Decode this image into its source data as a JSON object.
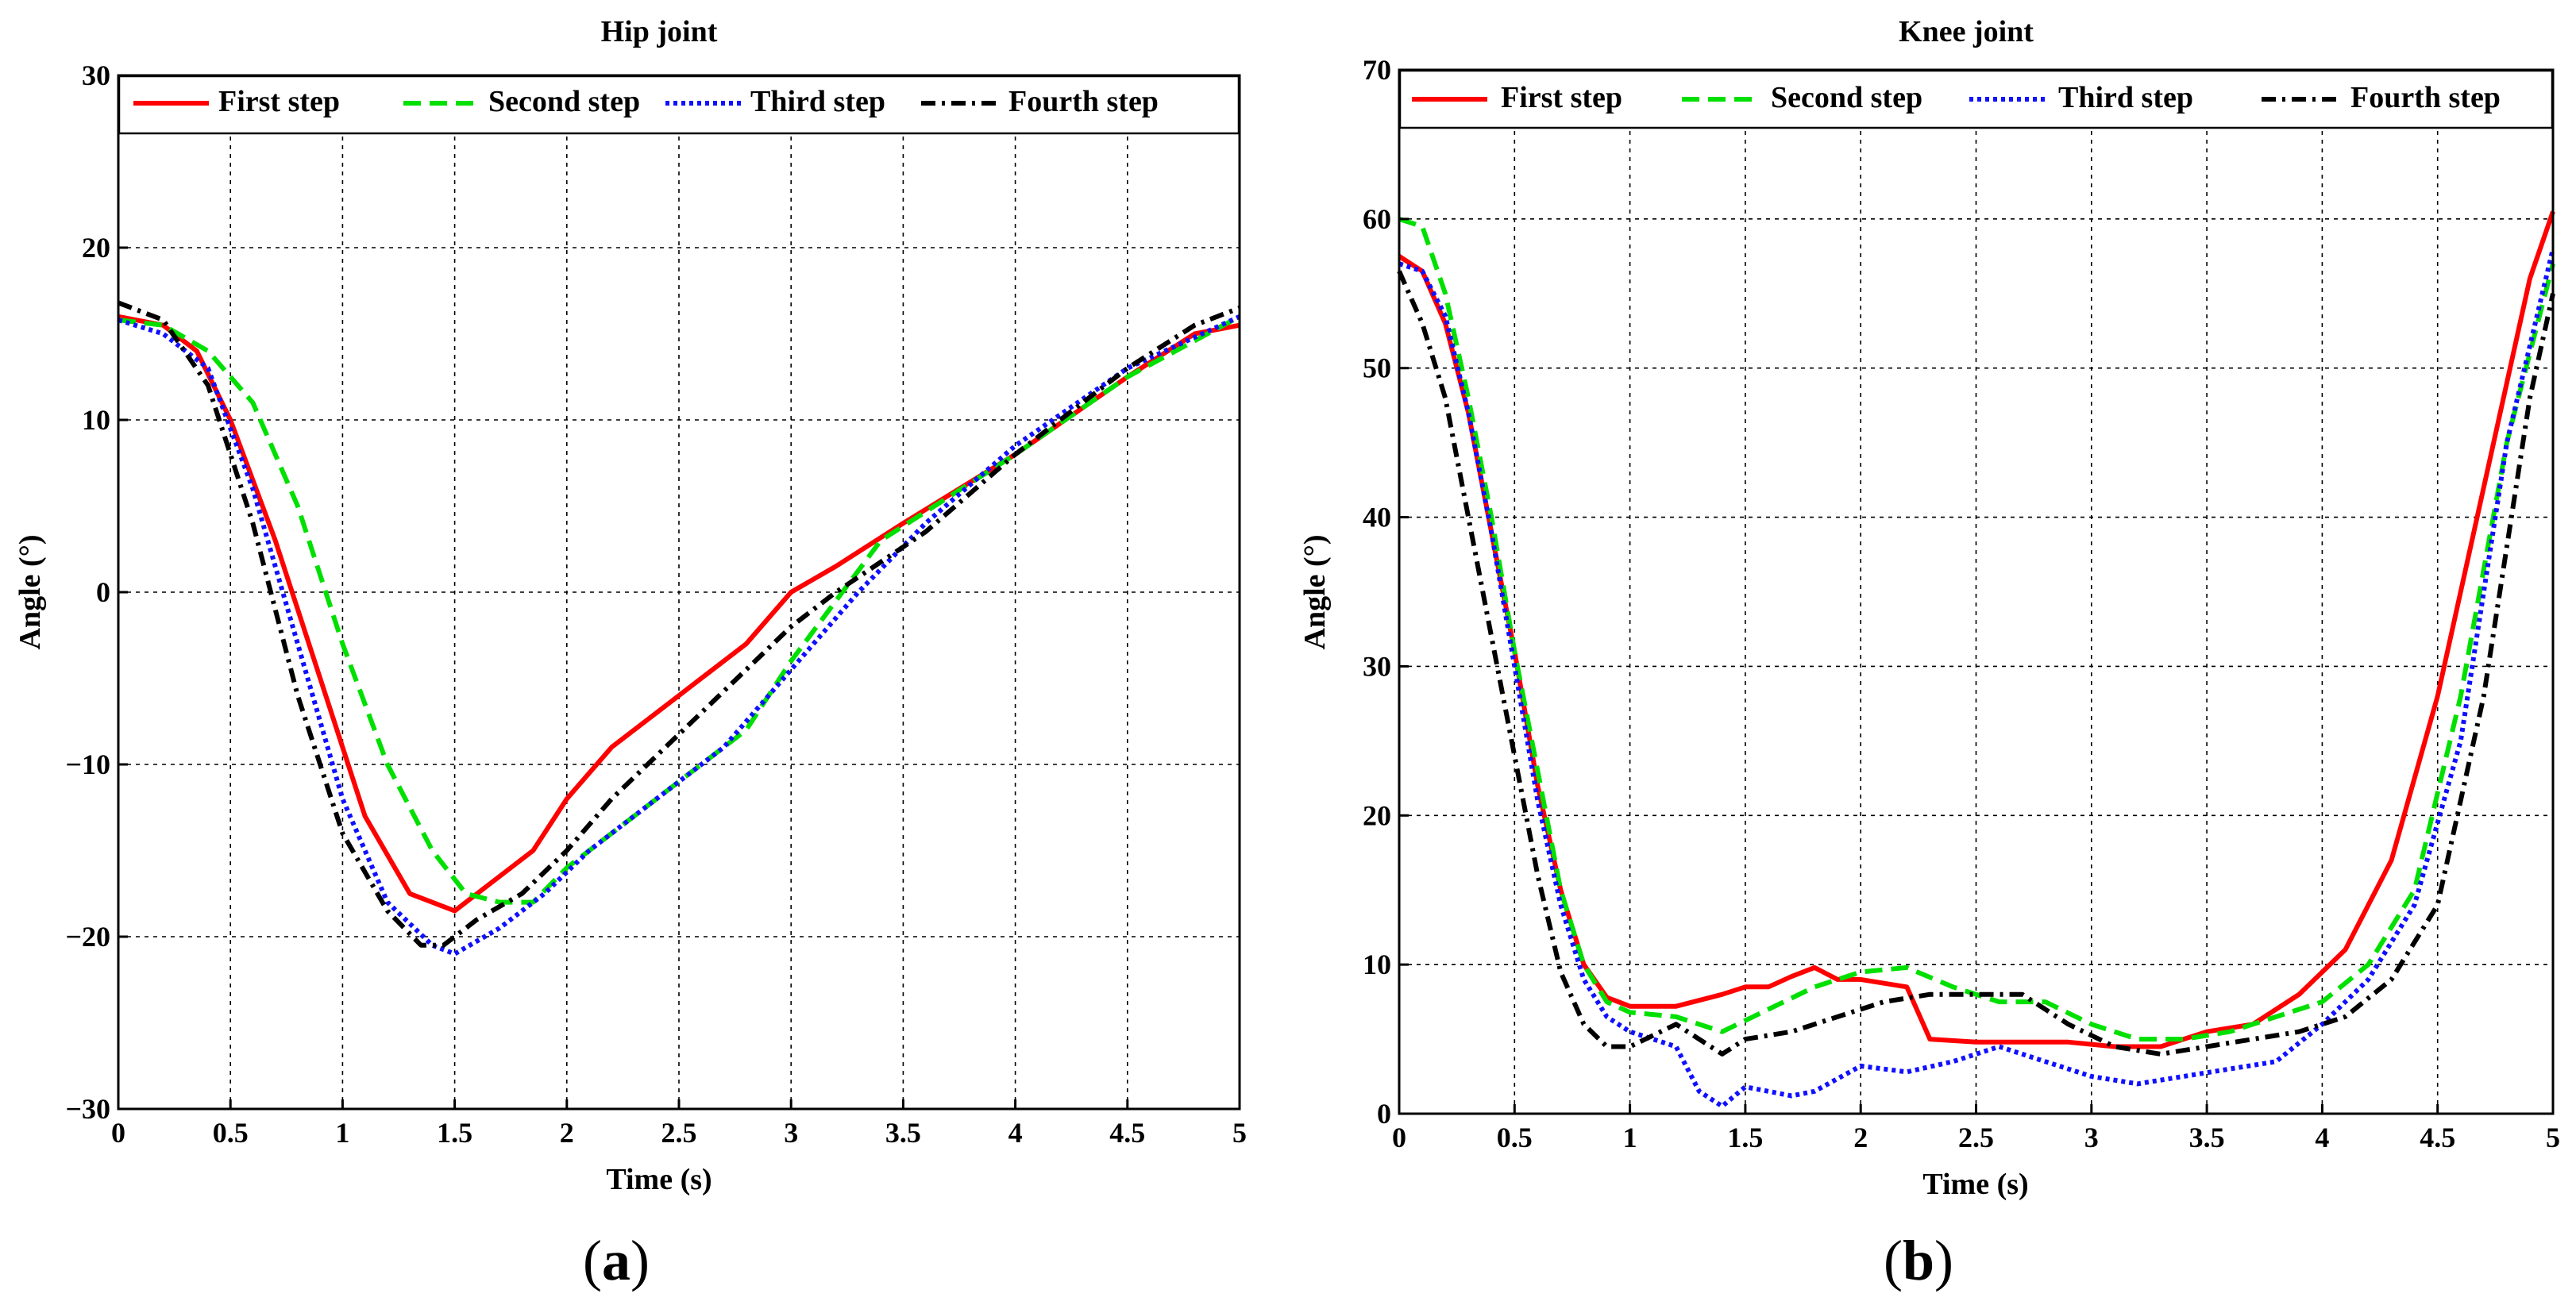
{
  "chart_data": [
    {
      "type": "line",
      "title": "Hip joint",
      "xlabel": "Time (s)",
      "ylabel": "Angle (°)",
      "xlim": [
        0,
        5
      ],
      "ylim": [
        -30,
        30
      ],
      "xticks": [
        "0",
        "0.5",
        "1",
        "1.5",
        "2",
        "2.5",
        "3",
        "3.5",
        "4",
        "4.5",
        "5"
      ],
      "yticks": [
        "30",
        "20",
        "10",
        "0",
        "−10",
        "−20",
        "−30"
      ],
      "grid": true,
      "legend": "top",
      "caption": {
        "open": "(",
        "letter": "a",
        "close": ")"
      },
      "series": [
        {
          "name": "First step",
          "color": "#ff0000",
          "style": "solid",
          "points": [
            [
              0,
              16
            ],
            [
              0.2,
              15.5
            ],
            [
              0.35,
              14
            ],
            [
              0.5,
              10
            ],
            [
              0.7,
              3
            ],
            [
              0.9,
              -5
            ],
            [
              1.1,
              -13
            ],
            [
              1.3,
              -17.5
            ],
            [
              1.5,
              -18.5
            ],
            [
              1.65,
              -17
            ],
            [
              1.85,
              -15
            ],
            [
              2.0,
              -12
            ],
            [
              2.2,
              -9
            ],
            [
              2.4,
              -7
            ],
            [
              2.6,
              -5
            ],
            [
              2.8,
              -3
            ],
            [
              3.0,
              0
            ],
            [
              3.2,
              1.5
            ],
            [
              3.5,
              4
            ],
            [
              4.0,
              8
            ],
            [
              4.5,
              12.5
            ],
            [
              4.8,
              15
            ],
            [
              5.0,
              15.5
            ]
          ]
        },
        {
          "name": "Second step",
          "color": "#00e000",
          "style": "dashed",
          "points": [
            [
              0,
              15.8
            ],
            [
              0.2,
              15.5
            ],
            [
              0.4,
              14
            ],
            [
              0.6,
              11
            ],
            [
              0.8,
              5
            ],
            [
              1.0,
              -3
            ],
            [
              1.2,
              -10
            ],
            [
              1.4,
              -15
            ],
            [
              1.55,
              -17.5
            ],
            [
              1.7,
              -18
            ],
            [
              1.85,
              -18
            ],
            [
              2.0,
              -16
            ],
            [
              2.2,
              -14
            ],
            [
              2.4,
              -12
            ],
            [
              2.6,
              -10
            ],
            [
              2.8,
              -8
            ],
            [
              3.0,
              -4
            ],
            [
              3.2,
              -0.5
            ],
            [
              3.4,
              3
            ],
            [
              3.7,
              5.5
            ],
            [
              4.0,
              8
            ],
            [
              4.5,
              12.5
            ],
            [
              5.0,
              16
            ]
          ]
        },
        {
          "name": "Third step",
          "color": "#1010ff",
          "style": "dotted",
          "points": [
            [
              0,
              15.8
            ],
            [
              0.2,
              15
            ],
            [
              0.4,
              13
            ],
            [
              0.6,
              6
            ],
            [
              0.8,
              -3
            ],
            [
              1.0,
              -12
            ],
            [
              1.2,
              -18
            ],
            [
              1.4,
              -20.5
            ],
            [
              1.5,
              -21
            ],
            [
              1.7,
              -19.5
            ],
            [
              1.9,
              -17.5
            ],
            [
              2.1,
              -15
            ],
            [
              2.3,
              -13
            ],
            [
              2.5,
              -11
            ],
            [
              2.7,
              -9
            ],
            [
              2.9,
              -6
            ],
            [
              3.1,
              -3
            ],
            [
              3.3,
              0
            ],
            [
              3.6,
              4
            ],
            [
              4.0,
              8.5
            ],
            [
              4.5,
              13
            ],
            [
              5.0,
              16
            ]
          ]
        },
        {
          "name": "Fourth step",
          "color": "#000000",
          "style": "dashdot",
          "points": [
            [
              0,
              16.8
            ],
            [
              0.2,
              15.8
            ],
            [
              0.4,
              12
            ],
            [
              0.6,
              4
            ],
            [
              0.8,
              -6
            ],
            [
              1.0,
              -14
            ],
            [
              1.2,
              -18.5
            ],
            [
              1.35,
              -20.5
            ],
            [
              1.45,
              -20.5
            ],
            [
              1.6,
              -19
            ],
            [
              1.8,
              -17.5
            ],
            [
              2.0,
              -15
            ],
            [
              2.2,
              -12
            ],
            [
              2.4,
              -9.5
            ],
            [
              2.6,
              -7
            ],
            [
              2.8,
              -4.5
            ],
            [
              3.0,
              -2
            ],
            [
              3.2,
              0
            ],
            [
              3.6,
              3.5
            ],
            [
              4.0,
              8
            ],
            [
              4.5,
              13
            ],
            [
              4.8,
              15.5
            ],
            [
              5.0,
              16.5
            ]
          ]
        }
      ]
    },
    {
      "type": "line",
      "title": "Knee joint",
      "xlabel": "Time (s)",
      "ylabel": "Angle (°)",
      "xlim": [
        0,
        5
      ],
      "ylim": [
        0,
        70
      ],
      "xticks": [
        "0",
        "0.5",
        "1",
        "1.5",
        "2",
        "2.5",
        "3",
        "3.5",
        "4",
        "4.5",
        "5"
      ],
      "yticks": [
        "70",
        "60",
        "50",
        "40",
        "30",
        "20",
        "10",
        "0"
      ],
      "grid": true,
      "legend": "top",
      "caption": {
        "open": "(",
        "letter": "b",
        "close": ")"
      },
      "series": [
        {
          "name": "First step",
          "color": "#ff0000",
          "style": "solid",
          "points": [
            [
              0,
              57.5
            ],
            [
              0.1,
              56.5
            ],
            [
              0.2,
              53
            ],
            [
              0.3,
              47
            ],
            [
              0.4,
              39
            ],
            [
              0.5,
              31
            ],
            [
              0.6,
              22
            ],
            [
              0.7,
              15
            ],
            [
              0.8,
              10
            ],
            [
              0.9,
              7.8
            ],
            [
              1.0,
              7.2
            ],
            [
              1.2,
              7.2
            ],
            [
              1.4,
              8
            ],
            [
              1.5,
              8.5
            ],
            [
              1.6,
              8.5
            ],
            [
              1.7,
              9.2
            ],
            [
              1.8,
              9.8
            ],
            [
              1.9,
              9
            ],
            [
              2.0,
              9
            ],
            [
              2.2,
              8.5
            ],
            [
              2.3,
              5
            ],
            [
              2.5,
              4.8
            ],
            [
              2.7,
              4.8
            ],
            [
              2.9,
              4.8
            ],
            [
              3.1,
              4.5
            ],
            [
              3.3,
              4.5
            ],
            [
              3.5,
              5.5
            ],
            [
              3.7,
              6
            ],
            [
              3.9,
              8
            ],
            [
              4.1,
              11
            ],
            [
              4.3,
              17
            ],
            [
              4.5,
              28
            ],
            [
              4.7,
              42
            ],
            [
              4.9,
              56
            ],
            [
              5.0,
              60.5
            ]
          ]
        },
        {
          "name": "Second step",
          "color": "#00e000",
          "style": "dashed",
          "points": [
            [
              0,
              60
            ],
            [
              0.1,
              59.5
            ],
            [
              0.2,
              55
            ],
            [
              0.3,
              48
            ],
            [
              0.4,
              40
            ],
            [
              0.5,
              31
            ],
            [
              0.6,
              23
            ],
            [
              0.7,
              15
            ],
            [
              0.8,
              10
            ],
            [
              0.9,
              7.5
            ],
            [
              1.0,
              6.8
            ],
            [
              1.2,
              6.5
            ],
            [
              1.4,
              5.5
            ],
            [
              1.6,
              7
            ],
            [
              1.8,
              8.5
            ],
            [
              2.0,
              9.5
            ],
            [
              2.2,
              9.8
            ],
            [
              2.4,
              8.5
            ],
            [
              2.6,
              7.5
            ],
            [
              2.8,
              7.5
            ],
            [
              3.0,
              6
            ],
            [
              3.2,
              5
            ],
            [
              3.4,
              5
            ],
            [
              3.6,
              5.5
            ],
            [
              3.8,
              6.5
            ],
            [
              4.0,
              7.5
            ],
            [
              4.2,
              10
            ],
            [
              4.4,
              15
            ],
            [
              4.6,
              28
            ],
            [
              4.8,
              45
            ],
            [
              5.0,
              57
            ]
          ]
        },
        {
          "name": "Third step",
          "color": "#1010ff",
          "style": "dotted",
          "points": [
            [
              0,
              57
            ],
            [
              0.1,
              56.5
            ],
            [
              0.2,
              53.5
            ],
            [
              0.3,
              47
            ],
            [
              0.4,
              39
            ],
            [
              0.5,
              30
            ],
            [
              0.6,
              21
            ],
            [
              0.7,
              14
            ],
            [
              0.8,
              9
            ],
            [
              0.9,
              6.5
            ],
            [
              1.0,
              5.5
            ],
            [
              1.2,
              4.5
            ],
            [
              1.3,
              1.5
            ],
            [
              1.4,
              0.5
            ],
            [
              1.5,
              1.8
            ],
            [
              1.6,
              1.5
            ],
            [
              1.7,
              1.2
            ],
            [
              1.8,
              1.5
            ],
            [
              2.0,
              3.2
            ],
            [
              2.2,
              2.8
            ],
            [
              2.4,
              3.5
            ],
            [
              2.6,
              4.5
            ],
            [
              2.8,
              3.5
            ],
            [
              3.0,
              2.5
            ],
            [
              3.2,
              2
            ],
            [
              3.4,
              2.5
            ],
            [
              3.6,
              3
            ],
            [
              3.8,
              3.5
            ],
            [
              4.0,
              6
            ],
            [
              4.2,
              9
            ],
            [
              4.4,
              14
            ],
            [
              4.6,
              25
            ],
            [
              4.8,
              45
            ],
            [
              5.0,
              58
            ]
          ]
        },
        {
          "name": "Fourth step",
          "color": "#000000",
          "style": "dashdot",
          "points": [
            [
              0,
              56.5
            ],
            [
              0.1,
              53
            ],
            [
              0.2,
              48
            ],
            [
              0.3,
              40
            ],
            [
              0.4,
              32
            ],
            [
              0.5,
              24
            ],
            [
              0.6,
              16
            ],
            [
              0.7,
              9.5
            ],
            [
              0.8,
              6
            ],
            [
              0.9,
              4.5
            ],
            [
              1.0,
              4.5
            ],
            [
              1.2,
              6
            ],
            [
              1.4,
              4
            ],
            [
              1.5,
              5
            ],
            [
              1.7,
              5.5
            ],
            [
              1.9,
              6.5
            ],
            [
              2.1,
              7.5
            ],
            [
              2.3,
              8
            ],
            [
              2.5,
              8
            ],
            [
              2.7,
              8
            ],
            [
              2.9,
              6
            ],
            [
              3.1,
              4.5
            ],
            [
              3.3,
              4
            ],
            [
              3.5,
              4.5
            ],
            [
              3.7,
              5
            ],
            [
              3.9,
              5.5
            ],
            [
              4.1,
              6.5
            ],
            [
              4.3,
              9
            ],
            [
              4.5,
              14
            ],
            [
              4.7,
              28
            ],
            [
              4.9,
              48
            ],
            [
              5.0,
              55
            ]
          ]
        }
      ]
    }
  ]
}
